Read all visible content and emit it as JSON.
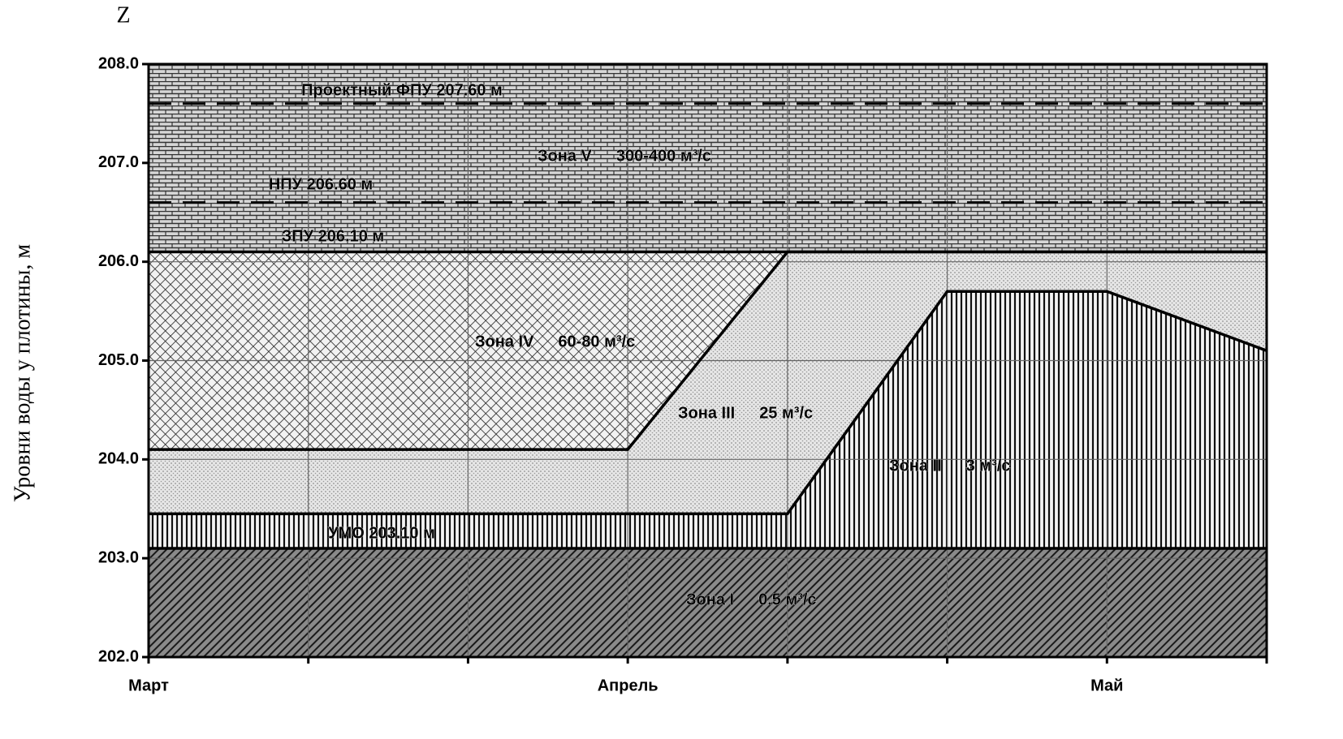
{
  "chart_data": {
    "type": "zones",
    "ylabel_corner": "Z",
    "ylabel": "Уровни воды у плотины, м",
    "x": [
      0,
      1,
      2,
      3,
      4,
      5,
      6,
      7
    ],
    "xlim": [
      0,
      7
    ],
    "xticks": [
      {
        "value": 0,
        "label": "Март"
      },
      {
        "value": 1,
        "label": null
      },
      {
        "value": 2,
        "label": null
      },
      {
        "value": 3,
        "label": "Апрель"
      },
      {
        "value": 4,
        "label": null
      },
      {
        "value": 5,
        "label": null
      },
      {
        "value": 6,
        "label": "Май"
      },
      {
        "value": 7,
        "label": null
      }
    ],
    "ylim": [
      202,
      208
    ],
    "yticks": [
      {
        "value": 202,
        "label": "202.0"
      },
      {
        "value": 203,
        "label": "203.0"
      },
      {
        "value": 204,
        "label": "204.0"
      },
      {
        "value": 205,
        "label": "205.0"
      },
      {
        "value": 206,
        "label": "206.0"
      },
      {
        "value": 207,
        "label": "207.0"
      },
      {
        "value": 208,
        "label": "208.0"
      }
    ],
    "grid": true,
    "series": [
      {
        "name": "УМО 203.10 м",
        "color": "#000000",
        "dash": false,
        "values": [
          203.1,
          203.1,
          203.1,
          203.1,
          203.1,
          203.1,
          203.1,
          203.1
        ]
      },
      {
        "name": null,
        "color": "#000000",
        "dash": false,
        "values": [
          203.45,
          203.45,
          203.45,
          203.45,
          203.45,
          205.7,
          205.7,
          205.1
        ]
      },
      {
        "name": null,
        "color": "#000000",
        "dash": false,
        "values": [
          204.1,
          204.1,
          204.1,
          204.1,
          206.1,
          206.1,
          206.1,
          206.1
        ]
      },
      {
        "name": "ЗПУ 206.10 м",
        "color": "#000000",
        "dash": false,
        "values": [
          206.1,
          206.1,
          206.1,
          206.1,
          206.1,
          206.1,
          206.1,
          206.1
        ]
      },
      {
        "name": "НПУ 206.60 м",
        "color": "#000000",
        "dash": true,
        "values": [
          206.6,
          206.6,
          206.6,
          206.6,
          206.6,
          206.6,
          206.6,
          206.6
        ]
      },
      {
        "name": "Проектный ФПУ 207.60 м",
        "color": "#000000",
        "dash": true,
        "values": [
          207.6,
          207.6,
          207.6,
          207.6,
          207.6,
          207.6,
          207.6,
          207.6
        ]
      }
    ],
    "zones": [
      {
        "name": "Зона I",
        "flow": "0.5 м³/с",
        "pattern": "diagonal"
      },
      {
        "name": "Зона II",
        "flow": "3 м³/с",
        "pattern": "vertical"
      },
      {
        "name": "Зона III",
        "flow": "25 м³/с",
        "pattern": "dots"
      },
      {
        "name": "Зона IV",
        "flow": "60-80 м³/с",
        "pattern": "crosshatch"
      },
      {
        "name": "Зона V",
        "flow": "300-400 м³/с",
        "pattern": "brick"
      }
    ]
  }
}
